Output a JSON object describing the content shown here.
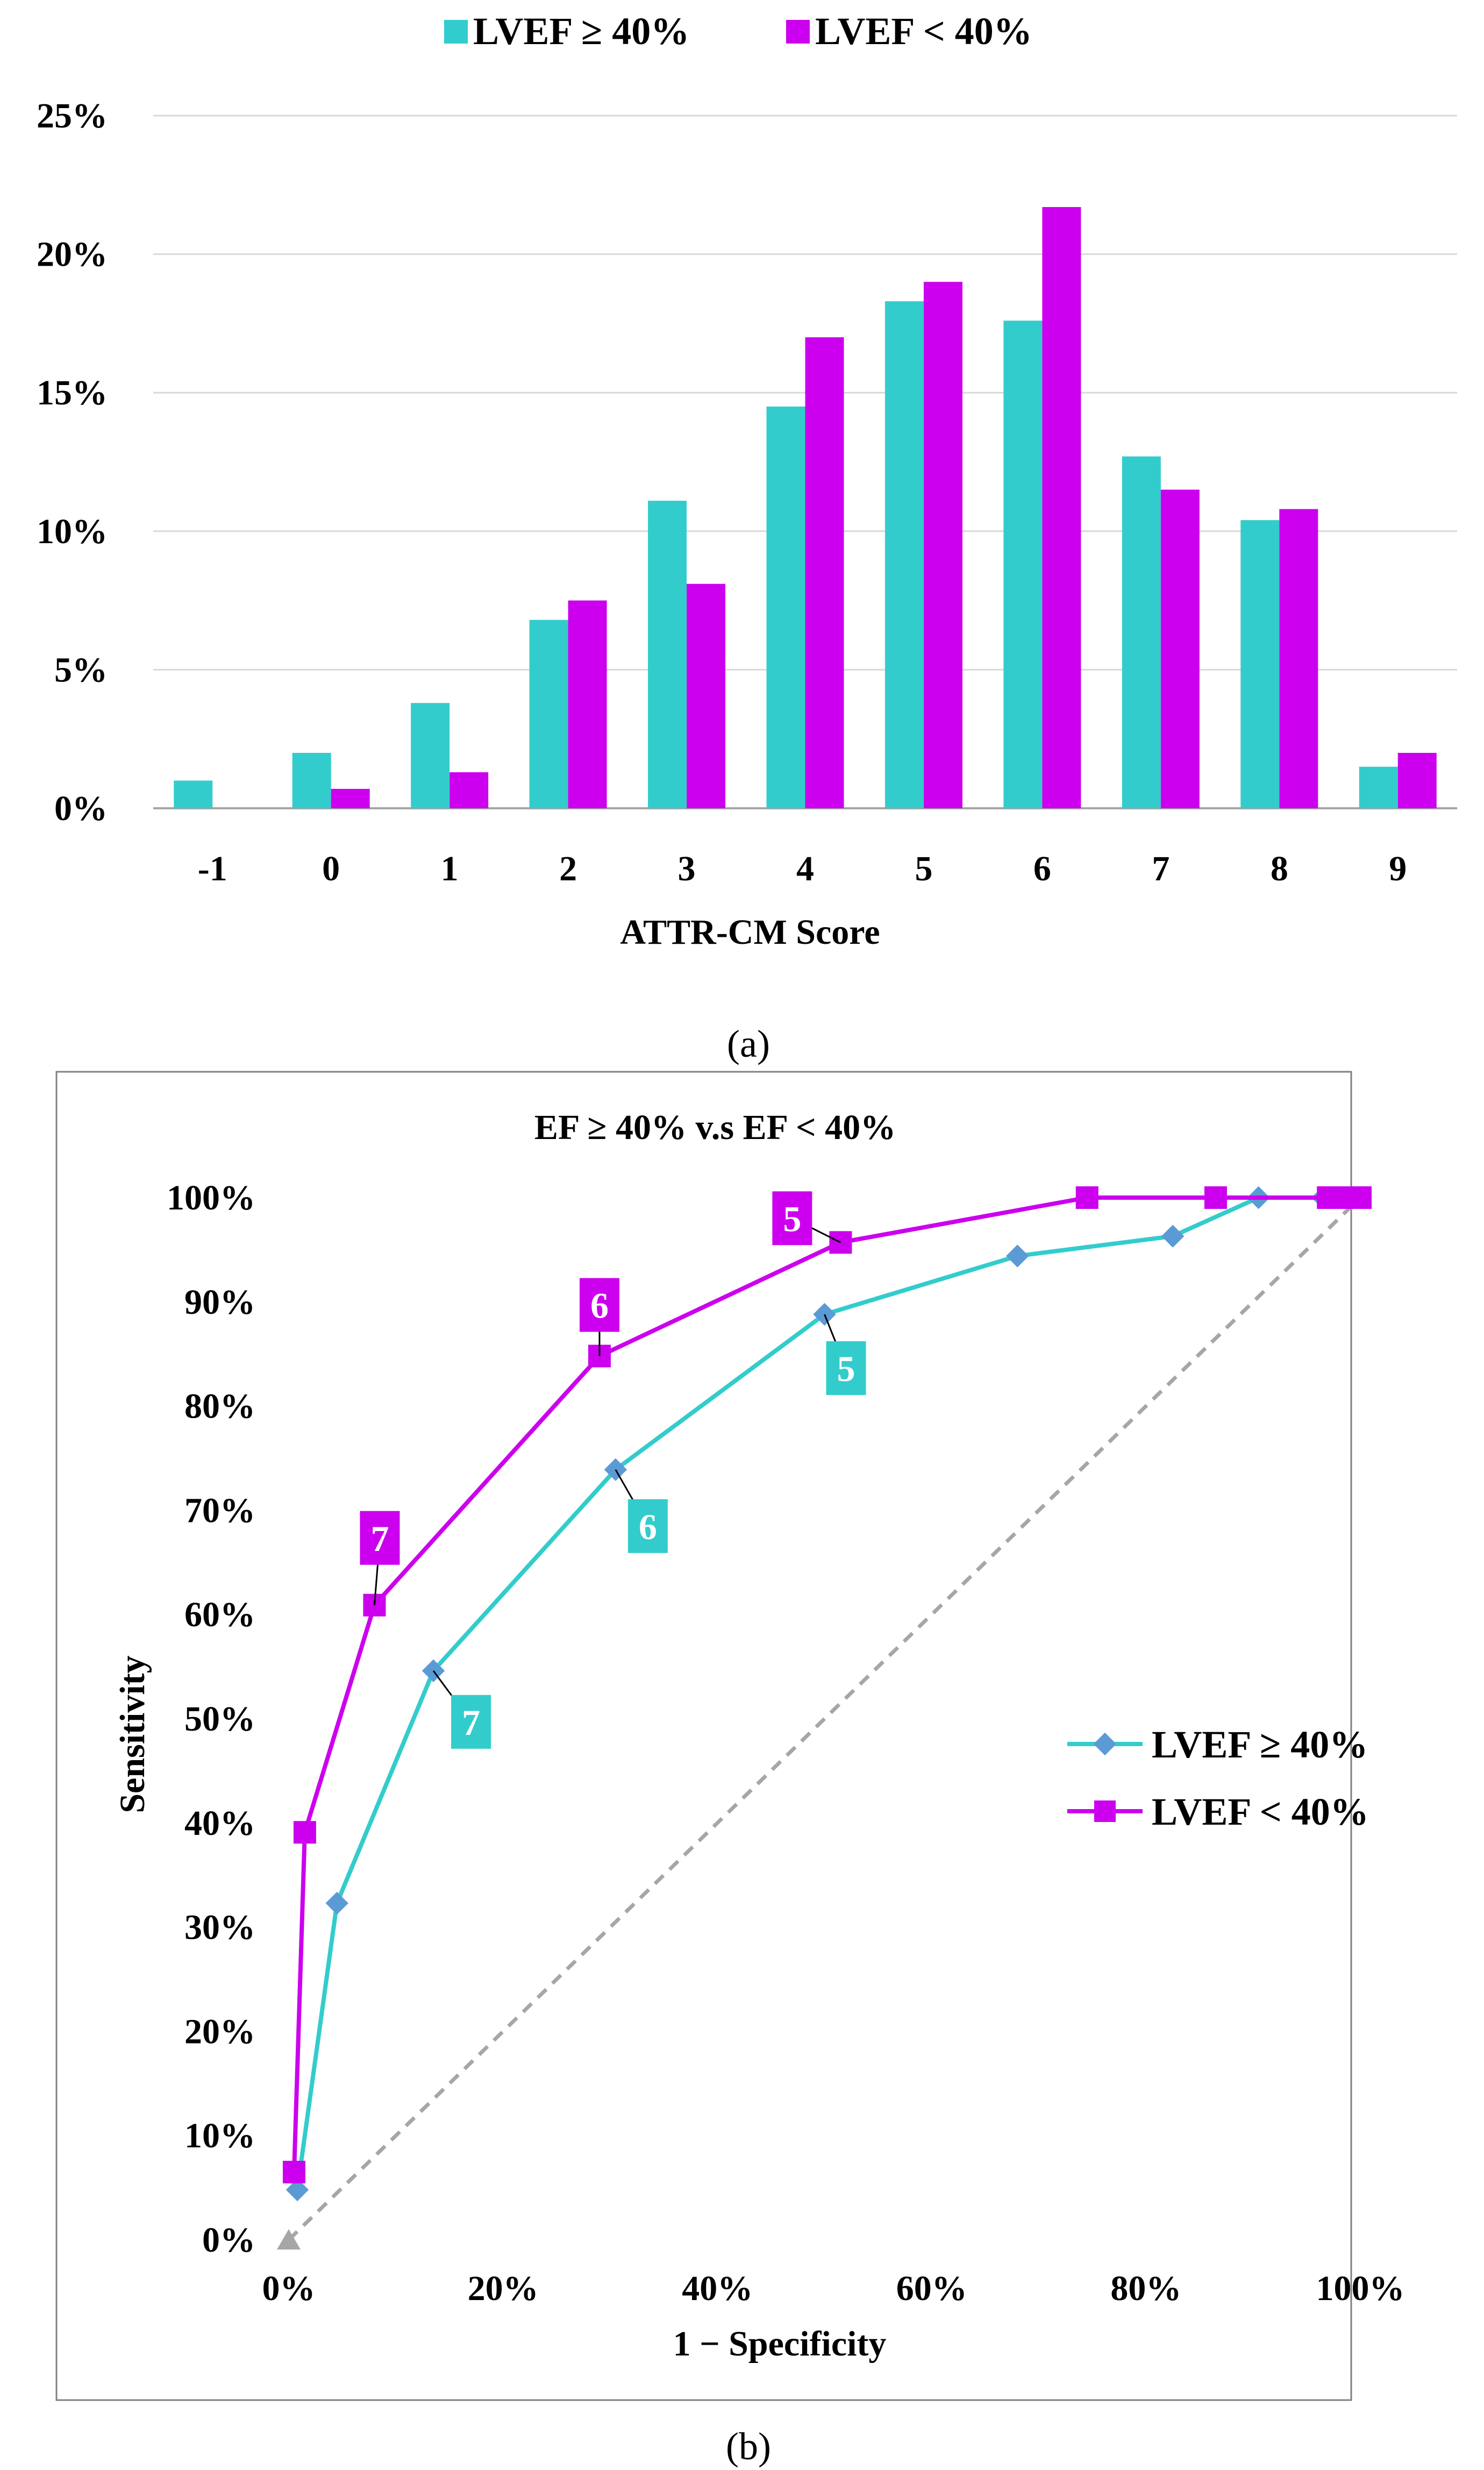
{
  "colors": {
    "series1": "#33CCCC",
    "series2": "#CC00EE",
    "series1_marker": "#5B9BD5",
    "reference": "#A6A6A6",
    "grid": "#D9D9D9"
  },
  "chart_data": [
    {
      "panel": "(a)",
      "type": "bar",
      "title": "",
      "xlabel": "ATTR-CM Score",
      "ylabel": "",
      "categories": [
        "-1",
        "0",
        "1",
        "2",
        "3",
        "4",
        "5",
        "6",
        "7",
        "8",
        "9"
      ],
      "series": [
        {
          "name": "LVEF ≥ 40%",
          "values": [
            1.0,
            2.0,
            3.8,
            6.8,
            11.1,
            14.5,
            18.3,
            17.6,
            12.7,
            10.4,
            1.5
          ]
        },
        {
          "name": "LVEF < 40%",
          "values": [
            0,
            0.7,
            1.3,
            7.5,
            8.1,
            17.0,
            19.0,
            21.7,
            11.5,
            10.8,
            2.0
          ]
        }
      ],
      "ylim": [
        0,
        25
      ],
      "yticks": [
        "0%",
        "5%",
        "10%",
        "15%",
        "20%",
        "25%"
      ],
      "grid": true,
      "legend": "top"
    },
    {
      "panel": "(b)",
      "type": "line",
      "title": "EF ≥ 40% v.s EF < 40%",
      "xlabel": "1 − Specificity",
      "ylabel": "Sensitivity",
      "xlim": [
        0,
        100
      ],
      "ylim": [
        0,
        100
      ],
      "xticks": [
        "0%",
        "20%",
        "40%",
        "60%",
        "80%",
        "100%"
      ],
      "yticks": [
        "0%",
        "10%",
        "20%",
        "30%",
        "40%",
        "50%",
        "60%",
        "70%",
        "80%",
        "90%",
        "100%"
      ],
      "series": [
        {
          "name": "LVEF ≥ 40%",
          "x": [
            0.8,
            4.5,
            13.5,
            30.5,
            50.0,
            68.0,
            82.5,
            90.5,
            96.5,
            98.5,
            100
          ],
          "y": [
            4.8,
            32.3,
            54.6,
            73.9,
            88.8,
            94.4,
            96.3,
            100,
            100,
            100,
            100
          ],
          "annotations": [
            {
              "point": 2,
              "text": "7"
            },
            {
              "point": 3,
              "text": "6"
            },
            {
              "point": 4,
              "text": "5"
            }
          ]
        },
        {
          "name": "LVEF < 40%",
          "x": [
            0.5,
            1.5,
            8.0,
            29.0,
            51.5,
            74.5,
            86.5,
            97.0,
            99.0,
            100
          ],
          "y": [
            6.5,
            39.1,
            60.9,
            84.8,
            95.7,
            100,
            100,
            100,
            100,
            100
          ],
          "annotations": [
            {
              "point": 2,
              "text": "7"
            },
            {
              "point": 3,
              "text": "6"
            },
            {
              "point": 4,
              "text": "5"
            }
          ]
        },
        {
          "name": "",
          "reference": true,
          "x": [
            0,
            100
          ],
          "y": [
            0,
            100
          ]
        }
      ],
      "grid": false,
      "legend": "right"
    }
  ]
}
